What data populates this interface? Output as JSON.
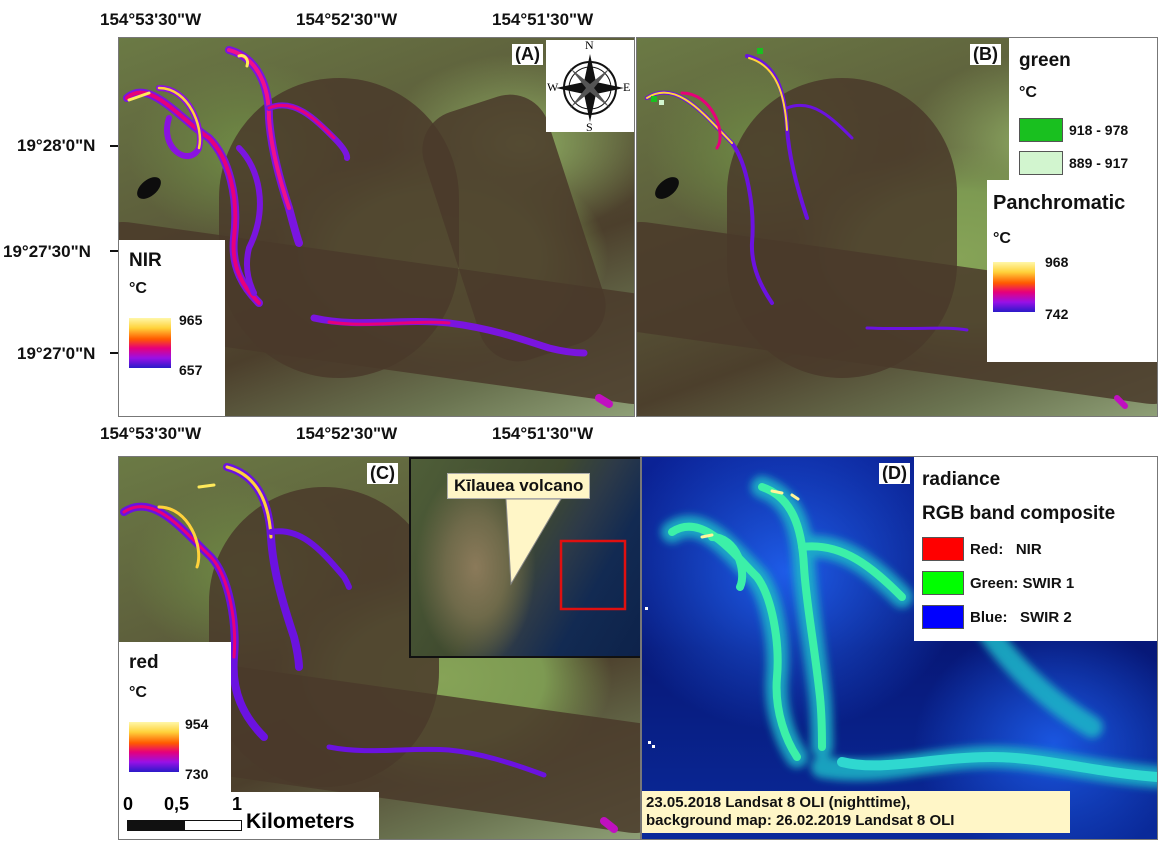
{
  "coordinates": {
    "top_lon": [
      "154°53'30\"W",
      "154°52'30\"W",
      "154°51'30\"W"
    ],
    "mid_lon": [
      "154°53'30\"W",
      "154°52'30\"W",
      "154°51'30\"W"
    ],
    "lat": [
      "19°28'0\"N",
      "19°27'30\"N",
      "19°27'0\"N"
    ]
  },
  "panels": {
    "A": {
      "label": "(A)",
      "legend": {
        "title": "NIR",
        "unit": "°C",
        "max": "965",
        "min": "657"
      },
      "compass": {
        "n": "N",
        "s": "S",
        "e": "E",
        "w": "W"
      }
    },
    "B": {
      "label": "(B)",
      "legend_green": {
        "title": "green",
        "unit": "°C",
        "classes": [
          {
            "range": "918 - 978",
            "color": "#19c01f"
          },
          {
            "range": "889 - 917",
            "color": "#d2f5cf"
          }
        ]
      },
      "legend_pan": {
        "title": "Panchromatic",
        "unit": "°C",
        "max": "968",
        "min": "742"
      }
    },
    "C": {
      "label": "(C)",
      "legend": {
        "title": "red",
        "unit": "°C",
        "max": "954",
        "min": "730"
      },
      "inset_label": "Kīlauea volcano",
      "scale": {
        "ticks": [
          "0",
          "0,5",
          "1"
        ],
        "unit": "Kilometers"
      }
    },
    "D": {
      "label": "(D)",
      "legend": {
        "title": "radiance",
        "subtitle": "RGB band composite",
        "channels": [
          {
            "label": "Red:   NIR",
            "color": "#ff0000"
          },
          {
            "label": "Green: SWIR 1",
            "color": "#00ff00"
          },
          {
            "label": "Blue:   SWIR 2",
            "color": "#0000ff"
          }
        ]
      },
      "note_line1": "23.05.2018 Landsat 8 OLI (nighttime),",
      "note_line2": "background map: 26.02.2019 Landsat 8 OLI"
    }
  },
  "colors": {
    "lava_hot": "#ffe95a",
    "lava_mid": "#e6007a",
    "lava_cool": "#6b12e0",
    "radiance_bg": "#0a1f8a",
    "radiance_flow": "#34e8b0"
  }
}
